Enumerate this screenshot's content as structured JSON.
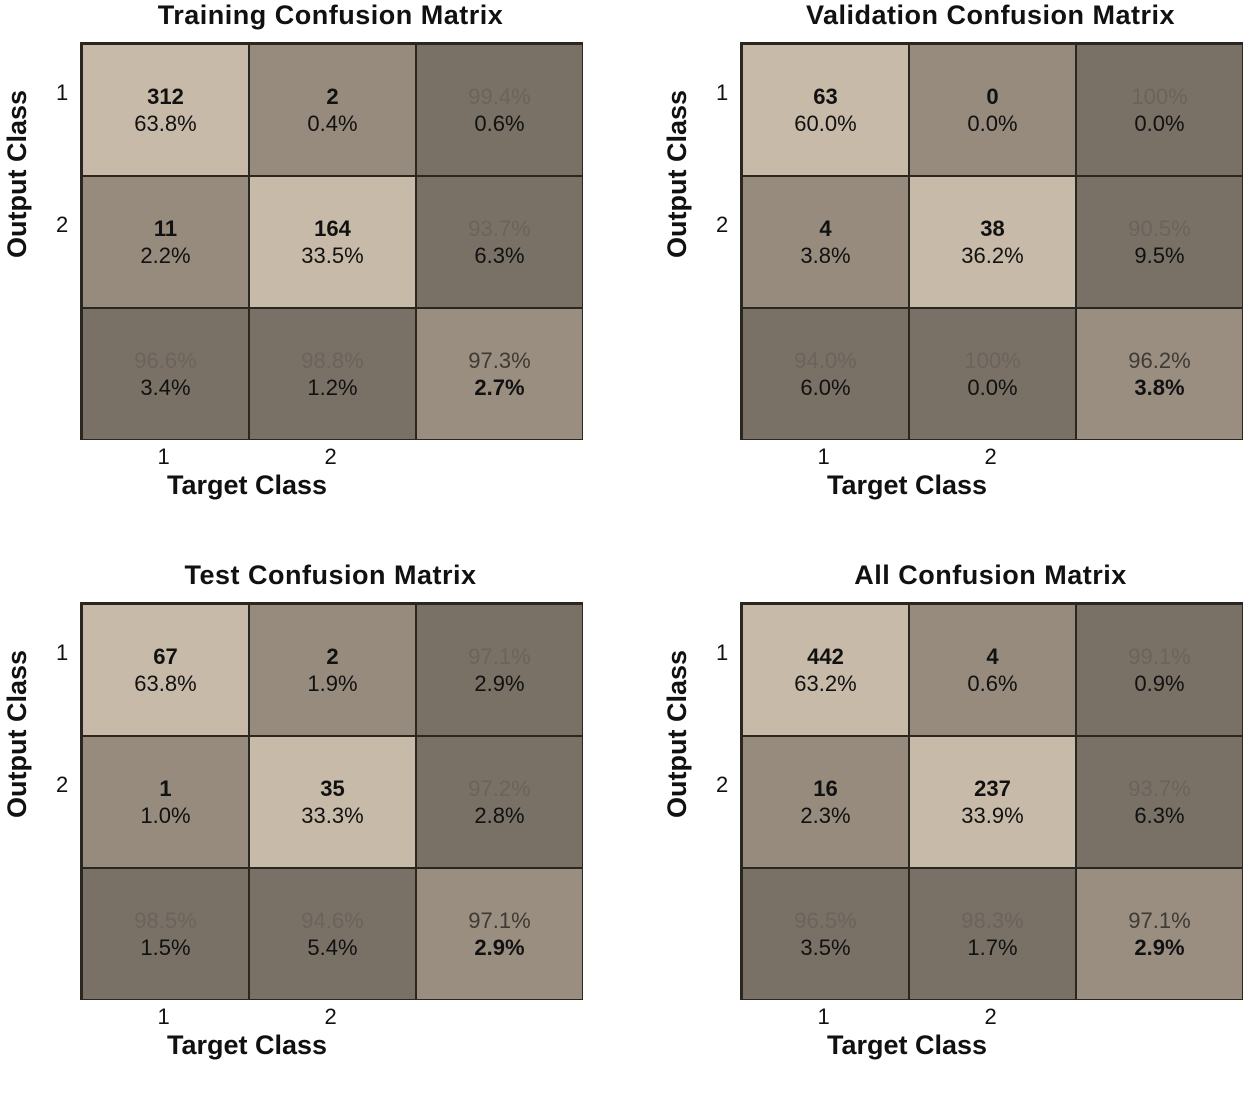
{
  "chart_data": [
    {
      "type": "heatmap",
      "title": "Training Confusion Matrix",
      "xlabel": "Target Class",
      "ylabel": "Output Class",
      "x_ticks": [
        "1",
        "2"
      ],
      "y_ticks": [
        "1",
        "2"
      ],
      "counts": [
        [
          312,
          2
        ],
        [
          11,
          164
        ]
      ],
      "percents": [
        [
          "63.8%",
          "0.4%"
        ],
        [
          "2.2%",
          "33.5%"
        ]
      ],
      "row_summary": [
        [
          "99.4%",
          "0.6%"
        ],
        [
          "93.7%",
          "6.3%"
        ]
      ],
      "col_summary": [
        [
          "96.6%",
          "3.4%"
        ],
        [
          "98.8%",
          "1.2%"
        ]
      ],
      "overall": [
        "97.3%",
        "2.7%"
      ]
    },
    {
      "type": "heatmap",
      "title": "Validation Confusion Matrix",
      "xlabel": "Target Class",
      "ylabel": "Output Class",
      "x_ticks": [
        "1",
        "2"
      ],
      "y_ticks": [
        "1",
        "2"
      ],
      "counts": [
        [
          63,
          0
        ],
        [
          4,
          38
        ]
      ],
      "percents": [
        [
          "60.0%",
          "0.0%"
        ],
        [
          "3.8%",
          "36.2%"
        ]
      ],
      "row_summary": [
        [
          "100%",
          "0.0%"
        ],
        [
          "90.5%",
          "9.5%"
        ]
      ],
      "col_summary": [
        [
          "94.0%",
          "6.0%"
        ],
        [
          "100%",
          "0.0%"
        ]
      ],
      "overall": [
        "96.2%",
        "3.8%"
      ]
    },
    {
      "type": "heatmap",
      "title": "Test Confusion Matrix",
      "xlabel": "Target Class",
      "ylabel": "Output Class",
      "x_ticks": [
        "1",
        "2"
      ],
      "y_ticks": [
        "1",
        "2"
      ],
      "counts": [
        [
          67,
          2
        ],
        [
          1,
          35
        ]
      ],
      "percents": [
        [
          "63.8%",
          "1.9%"
        ],
        [
          "1.0%",
          "33.3%"
        ]
      ],
      "row_summary": [
        [
          "97.1%",
          "2.9%"
        ],
        [
          "97.2%",
          "2.8%"
        ]
      ],
      "col_summary": [
        [
          "98.5%",
          "1.5%"
        ],
        [
          "94.6%",
          "5.4%"
        ]
      ],
      "overall": [
        "97.1%",
        "2.9%"
      ]
    },
    {
      "type": "heatmap",
      "title": "All Confusion Matrix",
      "xlabel": "Target Class",
      "ylabel": "Output Class",
      "x_ticks": [
        "1",
        "2"
      ],
      "y_ticks": [
        "1",
        "2"
      ],
      "counts": [
        [
          442,
          4
        ],
        [
          16,
          237
        ]
      ],
      "percents": [
        [
          "63.2%",
          "0.6%"
        ],
        [
          "2.3%",
          "33.9%"
        ]
      ],
      "row_summary": [
        [
          "99.1%",
          "0.9%"
        ],
        [
          "93.7%",
          "6.3%"
        ]
      ],
      "col_summary": [
        [
          "96.5%",
          "3.5%"
        ],
        [
          "98.3%",
          "1.7%"
        ]
      ],
      "overall": [
        "97.1%",
        "2.9%"
      ]
    }
  ],
  "colors": {
    "diagonal": "#c7baa8",
    "off_diagonal": "#968b7d",
    "summary": "#797166",
    "overall": "#9a8e80",
    "border": "#2a2620",
    "faint_text": "#6b645c"
  }
}
